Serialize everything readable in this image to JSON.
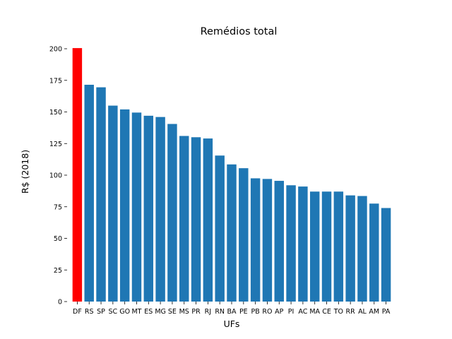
{
  "chart_data": {
    "type": "bar",
    "title": "Remédios total",
    "xlabel": "UFs",
    "ylabel": "R$ (2018)",
    "ylim": [
      0,
      200
    ],
    "yticks": [
      0,
      25,
      50,
      75,
      100,
      125,
      150,
      175,
      200
    ],
    "grid": false,
    "categories": [
      "DF",
      "RS",
      "SP",
      "SC",
      "GO",
      "MT",
      "ES",
      "MG",
      "SE",
      "MS",
      "PR",
      "RJ",
      "RN",
      "BA",
      "PE",
      "PB",
      "RO",
      "AP",
      "PI",
      "AC",
      "MA",
      "CE",
      "TO",
      "RR",
      "AL",
      "AM",
      "PA"
    ],
    "values": [
      200.5,
      171.5,
      169.5,
      155,
      152,
      149.5,
      147,
      146,
      140.5,
      131,
      130,
      129,
      115.5,
      108.5,
      105.5,
      97.5,
      97,
      95.5,
      92,
      91,
      87,
      87,
      87,
      84,
      83.5,
      77.5,
      74
    ],
    "highlight": {
      "category": "DF",
      "color": "#ff0000"
    },
    "bar_color": "#1f77b4"
  }
}
